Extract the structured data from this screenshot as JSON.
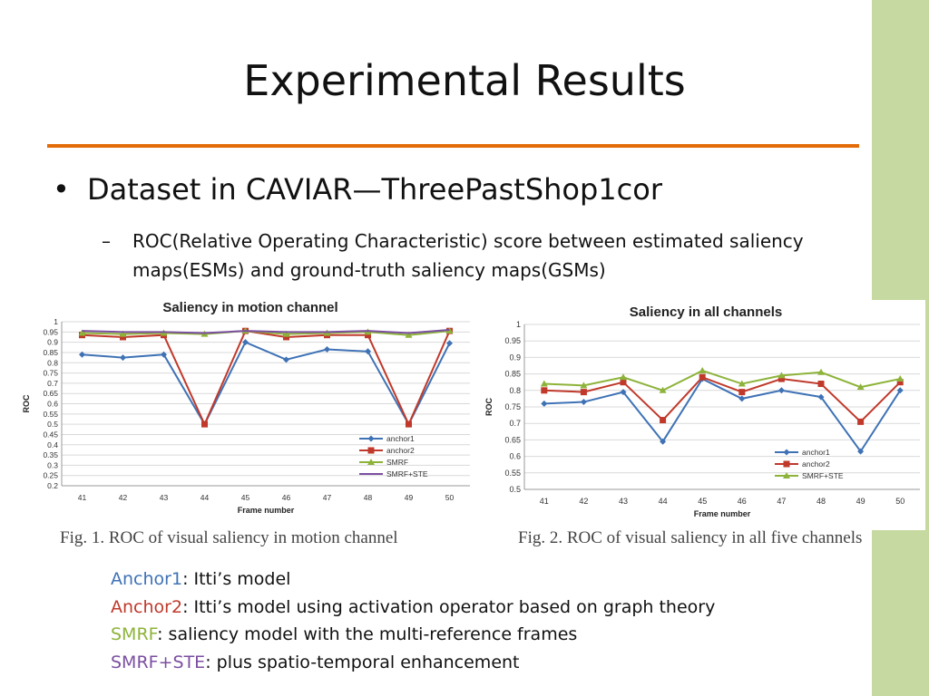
{
  "slide": {
    "title": "Experimental Results",
    "bullet_symbol": "•",
    "bullet": "Dataset in CAVIAR—ThreePastShop1cor",
    "sub_dash": "–",
    "sub_text": "ROC(Relative Operating Characteristic) score between estimated saliency maps(ESMs) and ground-truth saliency maps(GSMs)",
    "captions": [
      "Fig. 1. ROC of visual saliency in motion channel",
      "Fig. 2. ROC of visual saliency in all five channels"
    ],
    "legend_lines": [
      {
        "name": "Anchor1",
        "color": "#3f72b5",
        "desc": ": Itti’s model"
      },
      {
        "name": "Anchor2",
        "color": "#c0392b",
        "desc": ": Itti’s model using activation operator based on graph theory"
      },
      {
        "name": "SMRF",
        "color": "#8db33a",
        "desc": ": saliency model with the multi-reference frames"
      },
      {
        "name": "SMRF+STE",
        "color": "#7b4fa0",
        "desc": ": plus spatio-temporal enhancement"
      }
    ]
  },
  "colors": {
    "sidebar": "#c6d9a0",
    "rule": "#e36c09"
  },
  "chart_data": [
    {
      "type": "line",
      "title": "Saliency in motion channel",
      "xlabel": "Frame number",
      "ylabel": "ROC",
      "x": [
        41,
        42,
        43,
        44,
        45,
        46,
        47,
        48,
        49,
        50
      ],
      "ylim": [
        0.2,
        1
      ],
      "yticks": [
        0.2,
        0.25,
        0.3,
        0.35,
        0.4,
        0.45,
        0.5,
        0.55,
        0.6,
        0.65,
        0.7,
        0.75,
        0.8,
        0.85,
        0.9,
        0.95,
        1
      ],
      "ytick_labels": [
        "0.2",
        "0.25",
        "0.3",
        "0.35",
        "0.4",
        "0.45",
        "0.5",
        "0.55",
        "0.6",
        "0.65",
        "0.7",
        "0.75",
        "0.8",
        "0.85",
        "0.9",
        "0.95",
        "1"
      ],
      "grid": true,
      "legend_position": "bottom-right",
      "series": [
        {
          "name": "anchor1",
          "color": "#3f72b5",
          "marker": "diamond",
          "values": [
            0.84,
            0.825,
            0.84,
            0.5,
            0.9,
            0.815,
            0.865,
            0.855,
            0.5,
            0.895
          ]
        },
        {
          "name": "anchor2",
          "color": "#c0392b",
          "marker": "square",
          "values": [
            0.935,
            0.925,
            0.935,
            0.5,
            0.955,
            0.925,
            0.935,
            0.935,
            0.5,
            0.955
          ]
        },
        {
          "name": "SMRF",
          "color": "#8db33a",
          "marker": "triangle",
          "values": [
            0.945,
            0.94,
            0.945,
            0.94,
            0.955,
            0.94,
            0.945,
            0.95,
            0.935,
            0.955
          ]
        },
        {
          "name": "SMRF+STE",
          "color": "#7b4fa0",
          "marker": "none",
          "values": [
            0.955,
            0.95,
            0.95,
            0.945,
            0.955,
            0.95,
            0.95,
            0.955,
            0.945,
            0.96
          ]
        }
      ]
    },
    {
      "type": "line",
      "title": "Saliency in all channels",
      "xlabel": "Frame number",
      "ylabel": "ROC",
      "x": [
        41,
        42,
        43,
        44,
        45,
        46,
        47,
        48,
        49,
        50
      ],
      "ylim": [
        0.5,
        1
      ],
      "yticks": [
        0.5,
        0.55,
        0.6,
        0.65,
        0.7,
        0.75,
        0.8,
        0.85,
        0.9,
        0.95,
        1
      ],
      "ytick_labels": [
        "0.5",
        "0.55",
        "0.6",
        "0.65",
        "0.7",
        "0.75",
        "0.8",
        "0.85",
        "0.9",
        "0.95",
        "1"
      ],
      "grid": true,
      "legend_position": "bottom-right",
      "series": [
        {
          "name": "anchor1",
          "color": "#3f72b5",
          "marker": "diamond",
          "values": [
            0.76,
            0.765,
            0.795,
            0.645,
            0.835,
            0.775,
            0.8,
            0.78,
            0.615,
            0.8
          ]
        },
        {
          "name": "anchor2",
          "color": "#c0392b",
          "marker": "square",
          "values": [
            0.8,
            0.795,
            0.825,
            0.71,
            0.84,
            0.795,
            0.835,
            0.82,
            0.705,
            0.825
          ]
        },
        {
          "name": "SMRF+STE",
          "color": "#8db33a",
          "marker": "triangle",
          "values": [
            0.82,
            0.815,
            0.84,
            0.8,
            0.86,
            0.82,
            0.845,
            0.855,
            0.81,
            0.835
          ]
        }
      ]
    }
  ]
}
